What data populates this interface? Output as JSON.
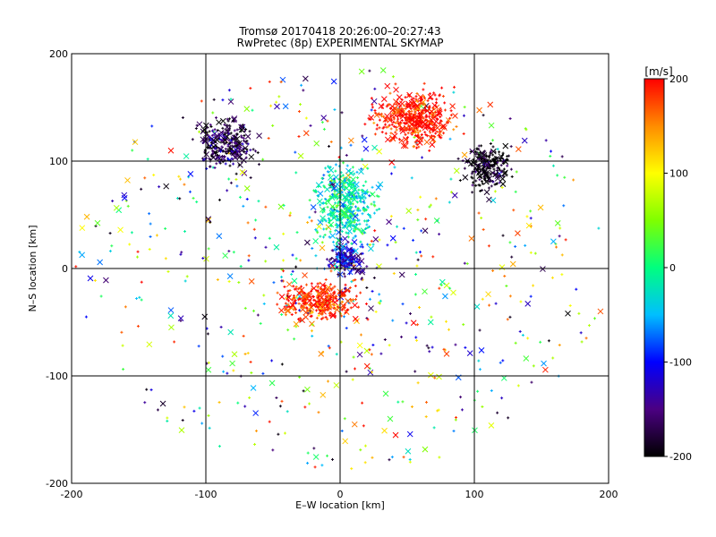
{
  "chart_data": {
    "type": "scatter",
    "title": "Tromsø 20170418 20:26:00–20:27:43",
    "subtitle": "RwPretec (8p) EXPERIMENTAL SKYMAP",
    "xlabel": "E–W location [km]",
    "ylabel": "N–S location [km]",
    "xlim": [
      -200,
      200
    ],
    "ylim": [
      -200,
      200
    ],
    "x_ticks": [
      -200,
      -100,
      0,
      100,
      200
    ],
    "y_ticks": [
      -200,
      -100,
      0,
      100,
      200
    ],
    "grid_lines": [
      -100,
      0,
      100
    ],
    "grid": true,
    "markers": [
      "x",
      "+"
    ],
    "colorbar": {
      "label": "[m/s]",
      "range": [
        -200,
        200
      ],
      "ticks": [
        -200,
        -100,
        0,
        100,
        200
      ],
      "colormap": [
        "#000000",
        "#4b0082",
        "#0000ff",
        "#00bfff",
        "#00ff7f",
        "#7fff00",
        "#ffff00",
        "#ff8c00",
        "#ff0000"
      ]
    },
    "clusters": [
      {
        "region": "center",
        "x": [
          -10,
          20
        ],
        "y": [
          -10,
          30
        ],
        "value": -120
      },
      {
        "region": "center-north",
        "x": [
          -20,
          30
        ],
        "y": [
          20,
          100
        ],
        "value": -20
      },
      {
        "region": "south-of-center",
        "x": [
          -50,
          20
        ],
        "y": [
          -50,
          -10
        ],
        "value": 190
      },
      {
        "region": "north-east",
        "x": [
          20,
          90
        ],
        "y": [
          110,
          170
        ],
        "value": 200
      },
      {
        "region": "east",
        "x": [
          90,
          130
        ],
        "y": [
          70,
          120
        ],
        "value": -200
      },
      {
        "region": "north-west",
        "x": [
          -110,
          -60
        ],
        "y": [
          90,
          140
        ],
        "value": -170
      }
    ]
  }
}
